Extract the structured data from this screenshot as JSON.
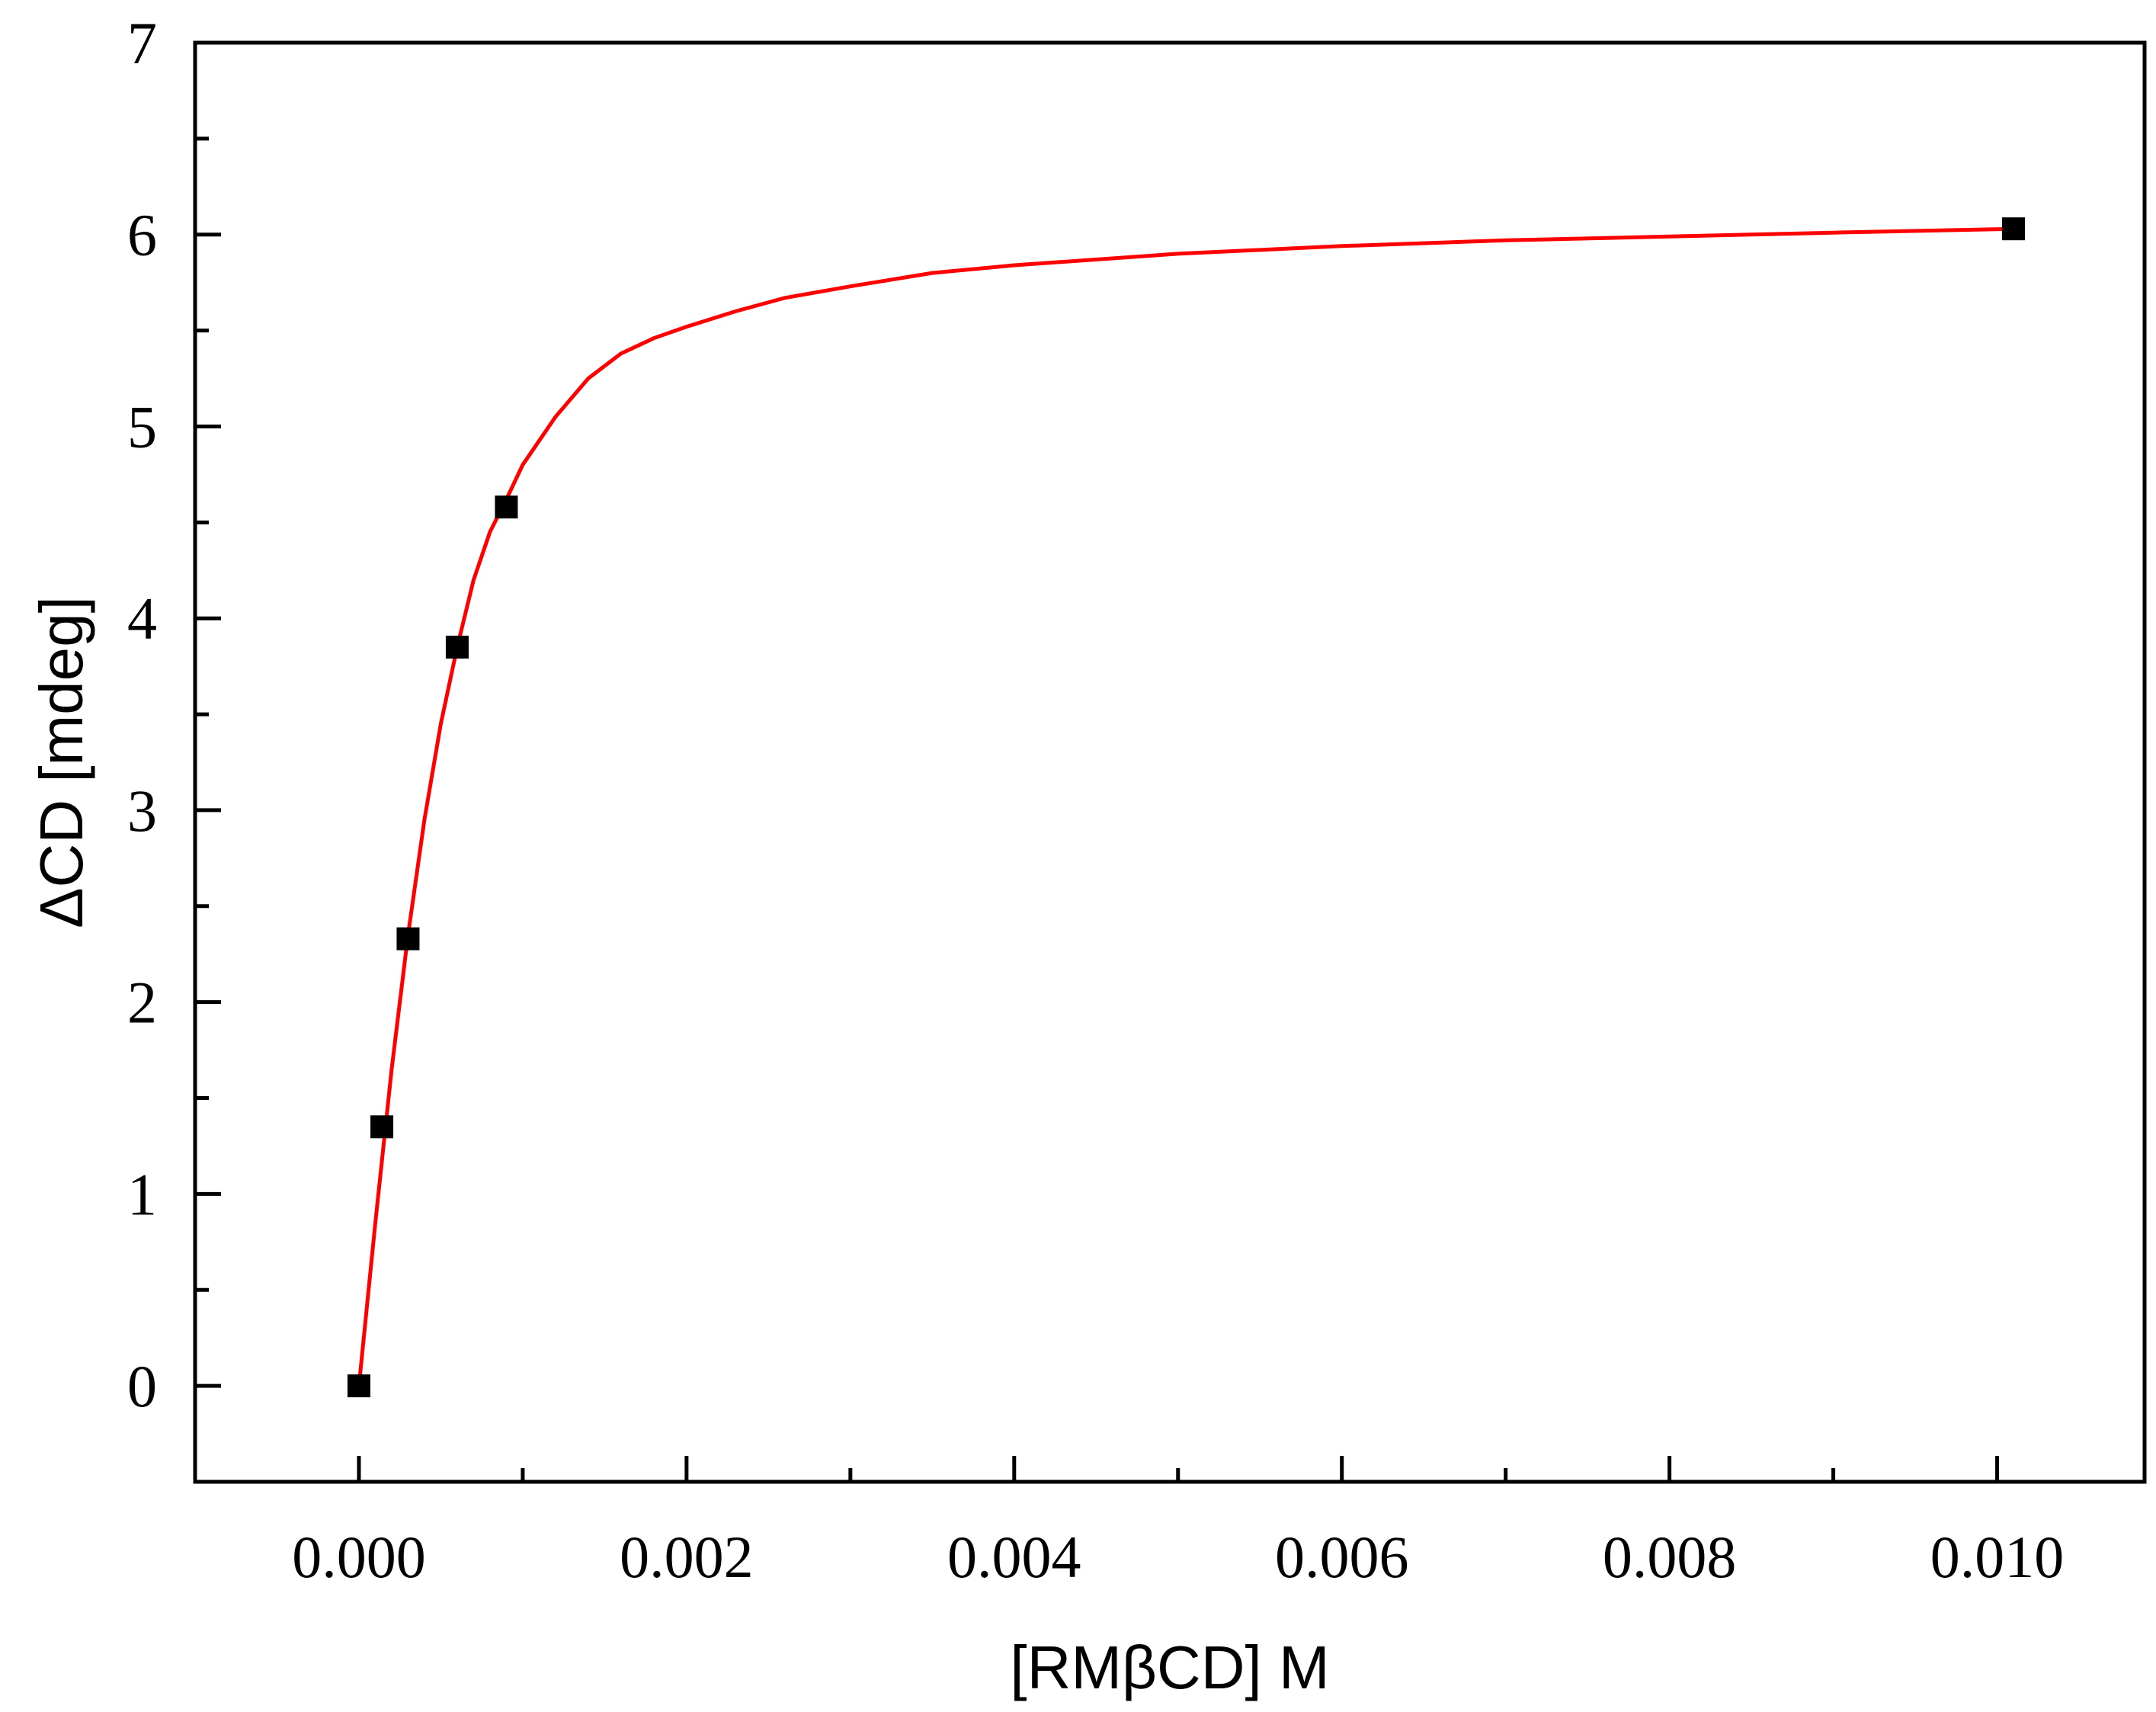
{
  "chart_data": {
    "type": "scatter",
    "xlabel": "[RMβCD] M",
    "ylabel": "ΔCD [mdeg]",
    "xlim": [
      -0.001,
      0.0109
    ],
    "ylim": [
      -0.5,
      7
    ],
    "xticks": [
      0.0,
      0.002,
      0.004,
      0.006,
      0.008,
      0.01
    ],
    "xtick_labels": [
      "0.000",
      "0.002",
      "0.004",
      "0.006",
      "0.008",
      "0.010"
    ],
    "yticks": [
      0,
      1,
      2,
      3,
      4,
      5,
      6,
      7
    ],
    "ytick_labels": [
      "0",
      "1",
      "2",
      "3",
      "4",
      "5",
      "6",
      "7"
    ],
    "grid": false,
    "series": [
      {
        "kind": "points",
        "marker": "square",
        "color": "#000000",
        "x": [
          0.0,
          0.00014,
          0.0003,
          0.0006,
          0.0009,
          0.0101
        ],
        "y": [
          0.0,
          1.35,
          2.33,
          3.85,
          4.58,
          6.03
        ]
      },
      {
        "kind": "fit-line",
        "color": "#ff0000",
        "x": [
          0.0,
          0.0001,
          0.0002,
          0.0003,
          0.0004,
          0.0005,
          0.0006,
          0.0007,
          0.0008,
          0.0009,
          0.001,
          0.0012,
          0.0014,
          0.0016,
          0.0018,
          0.002,
          0.0023,
          0.0026,
          0.003,
          0.0035,
          0.004,
          0.005,
          0.006,
          0.007,
          0.008,
          0.009,
          0.0101
        ],
        "y": [
          0.0,
          0.85,
          1.65,
          2.35,
          2.95,
          3.45,
          3.85,
          4.2,
          4.45,
          4.62,
          4.8,
          5.05,
          5.25,
          5.38,
          5.46,
          5.52,
          5.6,
          5.67,
          5.73,
          5.8,
          5.84,
          5.9,
          5.94,
          5.97,
          5.99,
          6.01,
          6.03
        ]
      }
    ]
  }
}
